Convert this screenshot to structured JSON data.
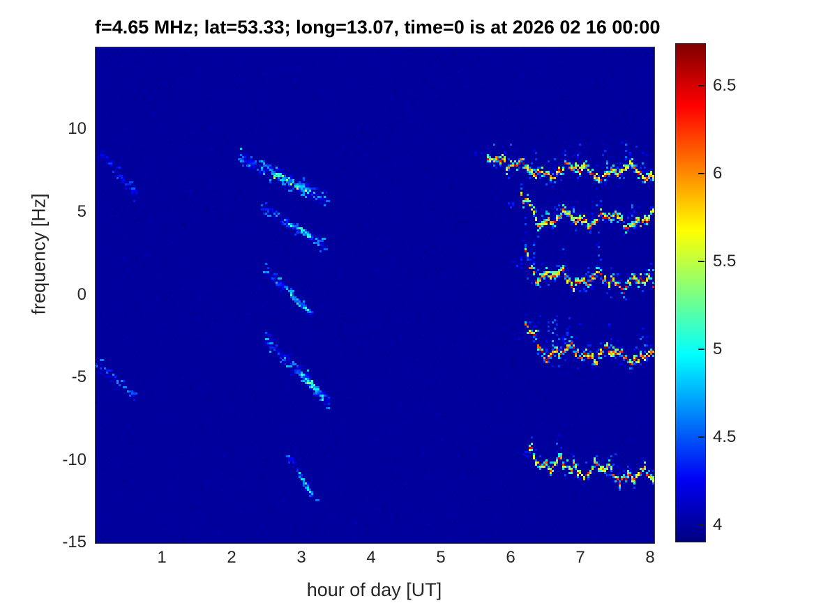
{
  "chart_data": {
    "type": "heatmap",
    "title": "f=4.65 MHz;  lat=53.33; long=13.07, time=0 is at 2026 02 16 00:00",
    "xlabel": "hour of day [UT]",
    "ylabel": "frequency [Hz]",
    "xlim": [
      0.04,
      8.05
    ],
    "ylim": [
      -15,
      14.97
    ],
    "xticks": [
      1,
      2,
      3,
      4,
      5,
      6,
      7,
      8
    ],
    "yticks": [
      10,
      5,
      0,
      -5,
      -10,
      -15
    ],
    "grid": false,
    "colormap": "jet",
    "background_value": 3.98,
    "colorbar": {
      "position": "right",
      "range": [
        3.9,
        6.74
      ],
      "ticks": [
        6.5,
        6,
        5.5,
        5,
        4.5,
        4
      ]
    },
    "features": [
      {
        "name": "faint-trace-early-8hz",
        "type": "trace",
        "hours": [
          0.08,
          0.62
        ],
        "freq": [
          8.7,
          6.0
        ],
        "width_hz": 0.9,
        "dots": 95,
        "value_range": [
          3.97,
          4.55
        ]
      },
      {
        "name": "faint-trace-early-minus5hz",
        "type": "trace",
        "hours": [
          0.02,
          0.58
        ],
        "freq": [
          -4.1,
          -6.1
        ],
        "width_hz": 0.8,
        "dots": 95,
        "value_range": [
          3.97,
          4.7
        ]
      },
      {
        "name": "trace-0230-8hz",
        "type": "trace",
        "hours": [
          2.05,
          3.35
        ],
        "freq": [
          8.5,
          5.8
        ],
        "width_hz": 1.15,
        "dots": 330,
        "value_range": [
          3.98,
          4.85
        ],
        "hot": {
          "hours": [
            2.55,
            3.1
          ],
          "width_hz": 0.4,
          "dots": 130,
          "value_range": [
            4.5,
            5.85
          ]
        }
      },
      {
        "name": "trace-0230-4hz",
        "type": "trace",
        "hours": [
          2.4,
          3.3
        ],
        "freq": [
          5.4,
          3.1
        ],
        "width_hz": 0.85,
        "dots": 210,
        "value_range": [
          3.98,
          4.8
        ],
        "hot": {
          "hours": [
            2.75,
            3.15
          ],
          "width_hz": 0.35,
          "dots": 60,
          "value_range": [
            4.3,
            5.2
          ]
        }
      },
      {
        "name": "trace-0230-0hz",
        "type": "trace",
        "hours": [
          2.45,
          3.12
        ],
        "freq": [
          1.6,
          -1.1
        ],
        "width_hz": 0.75,
        "dots": 185,
        "value_range": [
          3.98,
          4.85
        ],
        "hot": {
          "hours": [
            2.8,
            3.08
          ],
          "width_hz": 0.3,
          "dots": 55,
          "value_range": [
            4.3,
            5.3
          ]
        }
      },
      {
        "name": "trace-0230-minus4hz",
        "type": "trace",
        "hours": [
          2.45,
          3.38
        ],
        "freq": [
          -2.5,
          -6.5
        ],
        "width_hz": 1.05,
        "dots": 330,
        "value_range": [
          3.98,
          4.85
        ],
        "hot": {
          "hours": [
            2.9,
            3.3
          ],
          "width_hz": 0.5,
          "dots": 115,
          "value_range": [
            4.3,
            5.35
          ]
        }
      },
      {
        "name": "trace-0300-minus11hz",
        "type": "trace",
        "hours": [
          2.76,
          3.2
        ],
        "freq": [
          -9.5,
          -12.5
        ],
        "width_hz": 0.55,
        "dots": 95,
        "value_range": [
          3.97,
          4.75
        ],
        "hot": {
          "hours": [
            2.95,
            3.12
          ],
          "width_hz": 0.3,
          "dots": 28,
          "value_range": [
            4.3,
            5.1
          ]
        }
      },
      {
        "name": "band-evening-7.5hz",
        "type": "band",
        "hours": [
          5.66,
          8.03
        ],
        "freq_core": 7.55,
        "drift_hz": -0.25,
        "hook_hz": 1.25,
        "hook_hours": 0.4,
        "core_value": [
          5.5,
          6.55
        ],
        "spike_prob": 0.17,
        "spike_up_hz": 1.7,
        "below_prob": 0.5
      },
      {
        "name": "band-evening-4.5hz",
        "type": "band",
        "hours": [
          6.13,
          8.03
        ],
        "freq_core": 4.6,
        "drift_hz": -0.2,
        "hook_hz": 1.1,
        "hook_hours": 0.28,
        "core_value": [
          5.5,
          6.55
        ],
        "spike_prob": 0.15,
        "spike_up_hz": 1.4,
        "below_prob": 0.4
      },
      {
        "name": "band-evening-1hz",
        "type": "band",
        "hours": [
          6.18,
          8.03
        ],
        "freq_core": 0.95,
        "drift_hz": -0.45,
        "hook_hz": 1.25,
        "hook_hours": 0.3,
        "core_value": [
          5.6,
          6.65
        ],
        "spike_prob": 0.18,
        "spike_up_hz": 1.7,
        "below_prob": 0.5
      },
      {
        "name": "band-evening-minus3.5hz",
        "type": "band",
        "hours": [
          6.2,
          8.03
        ],
        "freq_core": -3.5,
        "drift_hz": -0.35,
        "hook_hz": 1.35,
        "hook_hours": 0.3,
        "core_value": [
          5.7,
          6.74
        ],
        "spike_prob": 0.22,
        "spike_up_hz": 1.9,
        "below_prob": 0.6
      },
      {
        "name": "band-evening-minus10.5hz",
        "type": "band",
        "hours": [
          6.24,
          8.03
        ],
        "freq_core": -10.55,
        "drift_hz": -1.0,
        "hook_hz": 1.15,
        "hook_hours": 0.25,
        "core_value": [
          5.5,
          6.55
        ],
        "spike_prob": 0.16,
        "spike_up_hz": 1.5,
        "below_prob": 0.45
      }
    ]
  },
  "colors": {
    "figure_background": "#ffffff",
    "plot_background": "#0000a4",
    "tick_text": "#262626",
    "title_text": "#000000"
  }
}
